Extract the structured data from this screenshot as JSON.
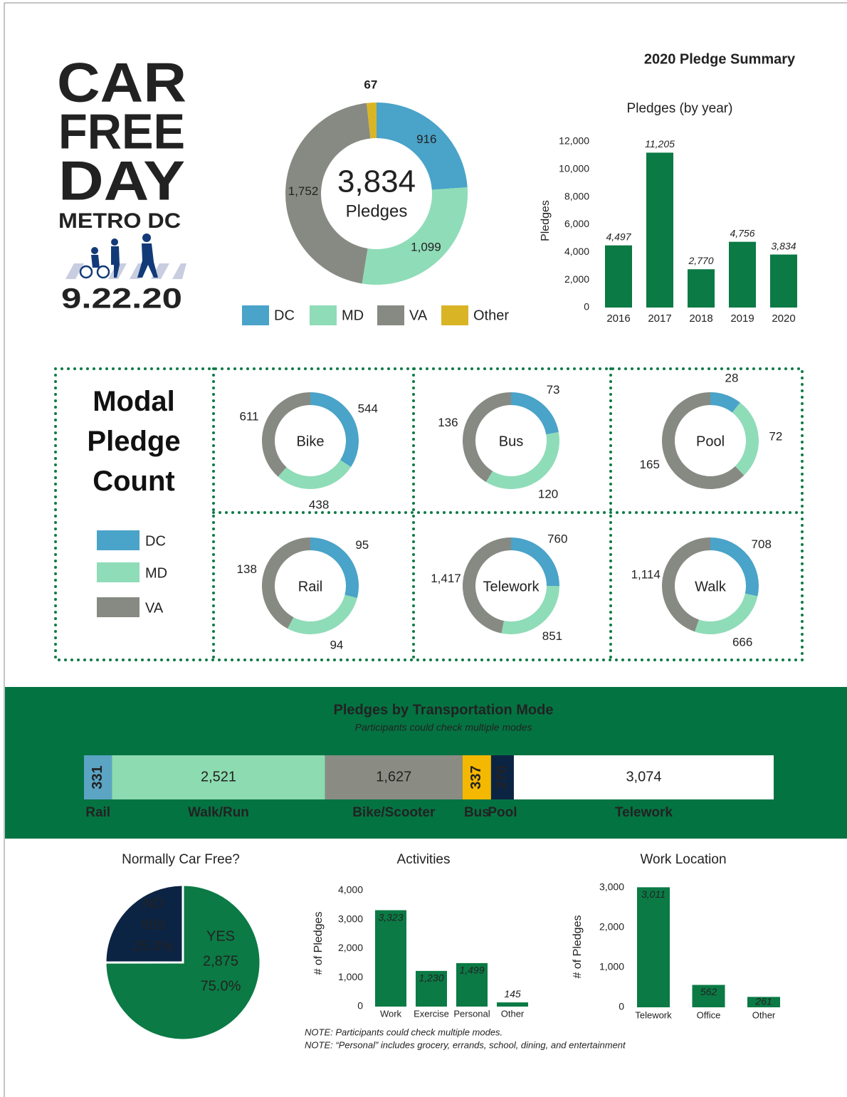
{
  "logo": {
    "line1": "CAR",
    "line2": "FREE",
    "line3": "DAY",
    "line4": "METRO DC",
    "date": "9.22.20"
  },
  "header": {
    "title": "2020 Pledge Summary"
  },
  "chart_data": [
    {
      "type": "donut",
      "categories": [
        "DC",
        "MD",
        "VA",
        "Other"
      ],
      "values": [
        916,
        1099,
        1752,
        67
      ],
      "value_labels": [
        "916",
        "1,099",
        "1,752",
        "67"
      ],
      "colors": [
        "#4aa3c8",
        "#8fdcb8",
        "#878a82",
        "#d9b526"
      ],
      "total": 3834,
      "total_label": "3,834",
      "center_text": "Pledges"
    },
    {
      "type": "bar",
      "title": "Pledges (by year)",
      "ylabel": "Pledges",
      "categories": [
        "2016",
        "2017",
        "2018",
        "2019",
        "2020"
      ],
      "values": [
        4497,
        11205,
        2770,
        4756,
        3834
      ],
      "value_labels": [
        "4,497",
        "11,205",
        "2,770",
        "4,756",
        "3,834"
      ],
      "color": "#0b7a45",
      "ylim": [
        0,
        12000
      ],
      "yticks": [
        0,
        {
          "value": 2000,
          "label": "2,000"
        },
        {
          "value": 4000,
          "label": "4,000"
        },
        {
          "value": 6000,
          "label": "6,000"
        },
        {
          "value": 8000,
          "label": "8,000"
        },
        {
          "value": 10000,
          "label": "10,000"
        },
        {
          "value": 12000,
          "label": "12,000"
        }
      ]
    },
    {
      "type": "donut-grid",
      "title": "Modal Pledge Count",
      "categories": [
        "DC",
        "MD",
        "VA"
      ],
      "colors": [
        "#4aa3c8",
        "#8fdcb8",
        "#878a82"
      ],
      "panels": [
        {
          "name": "Bike",
          "values": [
            544,
            438,
            611
          ],
          "value_labels": [
            "544",
            "438",
            "611"
          ]
        },
        {
          "name": "Bus",
          "values": [
            73,
            120,
            136
          ],
          "value_labels": [
            "73",
            "120",
            "136"
          ]
        },
        {
          "name": "Pool",
          "values": [
            28,
            72,
            165
          ],
          "value_labels": [
            "28",
            "72",
            "165"
          ]
        },
        {
          "name": "Rail",
          "values": [
            95,
            94,
            138
          ],
          "value_labels": [
            "95",
            "94",
            "138"
          ]
        },
        {
          "name": "Telework",
          "values": [
            760,
            851,
            1417
          ],
          "value_labels": [
            "760",
            "851",
            "1,417"
          ]
        },
        {
          "name": "Walk",
          "values": [
            708,
            666,
            1114
          ],
          "value_labels": [
            "708",
            "666",
            "1,114"
          ]
        }
      ]
    },
    {
      "type": "stacked-bar",
      "title": "Pledges by Transportation Mode",
      "subtitle": "Participants could check multiple modes",
      "series": [
        {
          "name": "Rail",
          "color": "#5ba4c4",
          "values": [
            331
          ],
          "value_labels": [
            "331"
          ]
        },
        {
          "name": "Walk/Run",
          "color": "#8ddbb0",
          "values": [
            2521
          ],
          "value_labels": [
            "2,521"
          ]
        },
        {
          "name": "Bike/Scooter",
          "color": "#8a8c84",
          "values": [
            1627
          ],
          "value_labels": [
            "1,627"
          ]
        },
        {
          "name": "Bus",
          "color": "#f5b800",
          "values": [
            337
          ],
          "value_labels": [
            "337"
          ]
        },
        {
          "name": "Pool",
          "color": "#0c2444",
          "values": [
            270
          ],
          "value_labels": [
            "270"
          ]
        },
        {
          "name": "Telework",
          "color": "#ffffff",
          "values": [
            3074
          ],
          "value_labels": [
            "3,074"
          ]
        }
      ]
    },
    {
      "type": "pie",
      "title": "Normally Car Free?",
      "categories": [
        "NO",
        "YES"
      ],
      "values": [
        959,
        2875
      ],
      "value_labels": [
        "959",
        "2,875"
      ],
      "percent_labels": [
        "25.0%",
        "75.0%"
      ],
      "colors": [
        "#0c2444",
        "#0b7a45"
      ]
    },
    {
      "type": "bar",
      "title": "Activities",
      "ylabel": "# of Pledges",
      "categories": [
        "Work",
        "Exercise",
        "Personal",
        "Other"
      ],
      "values": [
        3323,
        1230,
        1499,
        145
      ],
      "value_labels": [
        "3,323",
        "1,230",
        "1,499",
        "145"
      ],
      "color": "#0b7a45",
      "ylim": [
        0,
        4000
      ],
      "yticks": [
        0,
        {
          "value": 1000,
          "label": "1,000"
        },
        {
          "value": 2000,
          "label": "2,000"
        },
        {
          "value": 3000,
          "label": "3,000"
        },
        {
          "value": 4000,
          "label": "4,000"
        }
      ]
    },
    {
      "type": "bar",
      "title": "Work Location",
      "ylabel": "# of Pledges",
      "categories": [
        "Telework",
        "Office",
        "Other"
      ],
      "values": [
        3011,
        562,
        261
      ],
      "value_labels": [
        "3,011",
        "562",
        "261"
      ],
      "color": "#0b7a45",
      "ylim": [
        0,
        3000
      ],
      "yticks": [
        0,
        {
          "value": 1000,
          "label": "1,000"
        },
        {
          "value": 2000,
          "label": "2,000"
        },
        {
          "value": 3000,
          "label": "3,000"
        }
      ]
    }
  ],
  "notes": [
    "NOTE: Participants could check multiple modes.",
    "NOTE: “Personal” includes grocery, errands, school, dining, and entertainment"
  ]
}
